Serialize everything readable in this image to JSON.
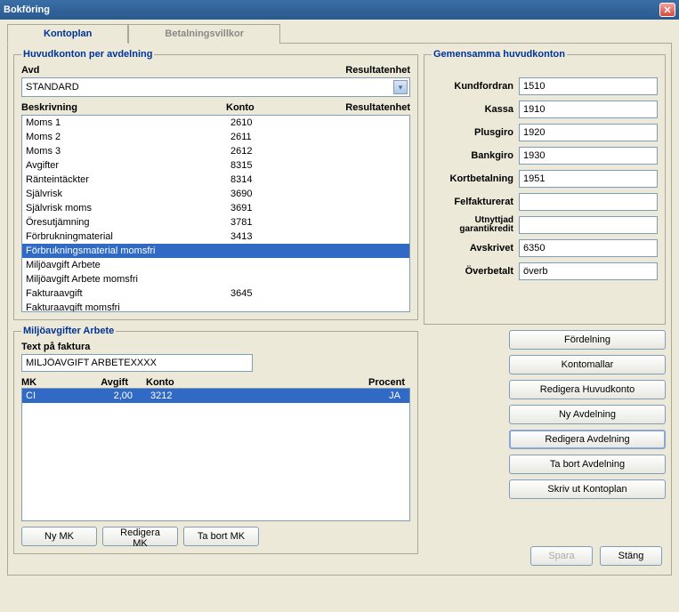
{
  "window": {
    "title": "Bokföring"
  },
  "tabs": {
    "kontoplan": "Kontoplan",
    "betalning": "Betalningsvillkor"
  },
  "huvud": {
    "legend": "Huvudkonton per avdelning",
    "avd_label": "Avd",
    "resultat_label": "Resultatenhet",
    "dropdown_value": "STANDARD",
    "col_beskrivning": "Beskrivning",
    "col_konto": "Konto",
    "col_resultat": "Resultatenhet",
    "rows": [
      {
        "b": "Moms 1",
        "k": "2610",
        "r": ""
      },
      {
        "b": "Moms 2",
        "k": "2611",
        "r": ""
      },
      {
        "b": "Moms 3",
        "k": "2612",
        "r": ""
      },
      {
        "b": "Avgifter",
        "k": "8315",
        "r": ""
      },
      {
        "b": "Ränteintäckter",
        "k": "8314",
        "r": ""
      },
      {
        "b": "Självrisk",
        "k": "3690",
        "r": ""
      },
      {
        "b": "Självrisk moms",
        "k": "3691",
        "r": ""
      },
      {
        "b": "Öresutjämning",
        "k": "3781",
        "r": ""
      },
      {
        "b": "Förbrukningmaterial",
        "k": "3413",
        "r": ""
      },
      {
        "b": "Förbrukningsmaterial momsfri",
        "k": "",
        "r": ""
      },
      {
        "b": "Miljöavgift Arbete",
        "k": "",
        "r": ""
      },
      {
        "b": "Miljöavgift Arbete momsfri",
        "k": "",
        "r": ""
      },
      {
        "b": "Fakturaavgift",
        "k": "3645",
        "r": ""
      },
      {
        "b": "Fakturaavgift momsfri",
        "k": "",
        "r": ""
      }
    ],
    "selected_index": 9
  },
  "gemensam": {
    "legend": "Gemensamma huvudkonton",
    "fields": [
      {
        "label": "Kundfordran",
        "value": "1510"
      },
      {
        "label": "Kassa",
        "value": "1910"
      },
      {
        "label": "Plusgiro",
        "value": "1920"
      },
      {
        "label": "Bankgiro",
        "value": "1930"
      },
      {
        "label": "Kortbetalning",
        "value": "1951"
      },
      {
        "label": "Felfakturerat",
        "value": ""
      },
      {
        "label": "Utnyttjad garantikredit",
        "value": ""
      },
      {
        "label": "Avskrivet",
        "value": "6350"
      },
      {
        "label": "Överbetalt",
        "value": "överb"
      }
    ]
  },
  "miljo": {
    "legend": "Miljöavgifter Arbete",
    "text_label": "Text på faktura",
    "text_value": "MILJÖAVGIFT ARBETEXXXX",
    "col_mk": "MK",
    "col_avgift": "Avgift",
    "col_konto": "Konto",
    "col_procent": "Procent",
    "rows": [
      {
        "mk": "CI",
        "avgift": "2,00",
        "konto": "3212",
        "procent": "JA"
      }
    ],
    "btn_ny": "Ny MK",
    "btn_red": "Redigera MK",
    "btn_ta": "Ta bort MK"
  },
  "right_buttons": {
    "fordelning": "Fördelning",
    "kontomallar": "Kontomallar",
    "red_huvud": "Redigera Huvudkonto",
    "ny_avd": "Ny Avdelning",
    "red_avd": "Redigera Avdelning",
    "ta_avd": "Ta bort Avdelning",
    "skriv": "Skriv ut Kontoplan"
  },
  "footer": {
    "spara": "Spara",
    "stang": "Stäng"
  },
  "colors": {
    "selection": "#316ac5",
    "panel_bg": "#ece9d8",
    "border": "#aca899",
    "input_border": "#7f9db9"
  }
}
